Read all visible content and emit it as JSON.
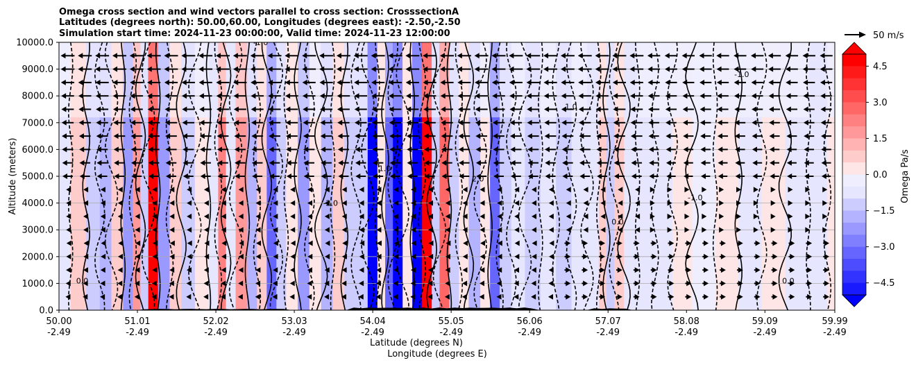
{
  "chart_data": {
    "type": "heatmap",
    "title_lines": [
      "Omega cross section and wind vectors parallel to cross section: CrosssectionA",
      "Latitudes (degrees north): 50.00,60.00, Longitudes (degrees east): -2.50,-2.50",
      "Simulation start time: 2024-11-23 00:00:00, Valid time: 2024-11-23 12:00:00"
    ],
    "xlabel_line1": "Latitude (degrees N)",
    "xlabel_line2": "Longitude (degrees E)",
    "ylabel": "Altitude (meters)",
    "colorbar_label": "Omega Pa/s",
    "vector_key_label": "50 m/s",
    "x_ticks": [
      {
        "lat": "50.00",
        "lon": "-2.49"
      },
      {
        "lat": "51.01",
        "lon": "-2.49"
      },
      {
        "lat": "52.02",
        "lon": "-2.49"
      },
      {
        "lat": "53.03",
        "lon": "-2.49"
      },
      {
        "lat": "54.04",
        "lon": "-2.49"
      },
      {
        "lat": "55.05",
        "lon": "-2.49"
      },
      {
        "lat": "56.06",
        "lon": "-2.49"
      },
      {
        "lat": "57.07",
        "lon": "-2.49"
      },
      {
        "lat": "58.08",
        "lon": "-2.49"
      },
      {
        "lat": "59.09",
        "lon": "-2.49"
      },
      {
        "lat": "59.99",
        "lon": "-2.49"
      }
    ],
    "y_ticks": [
      "0.0",
      "1000.0",
      "2000.0",
      "3000.0",
      "4000.0",
      "5000.0",
      "6000.0",
      "7000.0",
      "8000.0",
      "9000.0",
      "10000.0"
    ],
    "xlim": [
      50.0,
      59.99
    ],
    "ylim": [
      0,
      10000
    ],
    "colorbar_ticks": [
      "4.5",
      "3.0",
      "1.5",
      "0.0",
      "−1.5",
      "−3.0",
      "−4.5"
    ],
    "colorbar_range": [
      -5.0,
      5.0
    ],
    "colormap": {
      "negative": "#0000ff",
      "zero": "#ffffff",
      "positive": "#ff0000"
    },
    "grid": true,
    "omega_bands": [
      {
        "lat": 50.05,
        "value": -0.5
      },
      {
        "lat": 50.25,
        "value": 0.8
      },
      {
        "lat": 50.45,
        "value": -1.0
      },
      {
        "lat": 50.6,
        "value": -1.4
      },
      {
        "lat": 50.75,
        "value": 1.2
      },
      {
        "lat": 50.9,
        "value": -1.8
      },
      {
        "lat": 51.0,
        "value": 2.2
      },
      {
        "lat": 51.1,
        "value": -0.8
      },
      {
        "lat": 51.2,
        "value": 5.0
      },
      {
        "lat": 51.35,
        "value": -2.0
      },
      {
        "lat": 51.5,
        "value": 0.9
      },
      {
        "lat": 51.65,
        "value": -1.0
      },
      {
        "lat": 51.85,
        "value": 0.4
      },
      {
        "lat": 52.0,
        "value": -0.6
      },
      {
        "lat": 52.1,
        "value": 2.5
      },
      {
        "lat": 52.2,
        "value": -0.6
      },
      {
        "lat": 52.35,
        "value": 2.0
      },
      {
        "lat": 52.5,
        "value": -1.6
      },
      {
        "lat": 52.6,
        "value": 0.8
      },
      {
        "lat": 52.75,
        "value": -3.2
      },
      {
        "lat": 52.85,
        "value": -1.2
      },
      {
        "lat": 53.0,
        "value": 0.7
      },
      {
        "lat": 53.15,
        "value": -2.2
      },
      {
        "lat": 53.3,
        "value": 0.5
      },
      {
        "lat": 53.45,
        "value": -1.4
      },
      {
        "lat": 53.6,
        "value": 1.2
      },
      {
        "lat": 53.75,
        "value": -1.2
      },
      {
        "lat": 53.9,
        "value": -0.8
      },
      {
        "lat": 54.05,
        "value": -5.0
      },
      {
        "lat": 54.15,
        "value": 0.6
      },
      {
        "lat": 54.25,
        "value": -3.0
      },
      {
        "lat": 54.35,
        "value": -5.0
      },
      {
        "lat": 54.5,
        "value": 0.7
      },
      {
        "lat": 54.6,
        "value": -5.0
      },
      {
        "lat": 54.75,
        "value": 5.0
      },
      {
        "lat": 54.85,
        "value": -0.8
      },
      {
        "lat": 54.95,
        "value": 3.2
      },
      {
        "lat": 55.1,
        "value": -1.2
      },
      {
        "lat": 55.2,
        "value": 0.6
      },
      {
        "lat": 55.35,
        "value": -1.6
      },
      {
        "lat": 55.5,
        "value": 0.4
      },
      {
        "lat": 55.6,
        "value": -3.0
      },
      {
        "lat": 55.75,
        "value": -0.8
      },
      {
        "lat": 55.9,
        "value": -0.5
      },
      {
        "lat": 56.1,
        "value": -1.0
      },
      {
        "lat": 56.3,
        "value": -0.5
      },
      {
        "lat": 56.5,
        "value": -0.9
      },
      {
        "lat": 56.7,
        "value": -0.4
      },
      {
        "lat": 56.9,
        "value": -0.7
      },
      {
        "lat": 57.0,
        "value": 0.8
      },
      {
        "lat": 57.1,
        "value": -1.2
      },
      {
        "lat": 57.2,
        "value": 1.2
      },
      {
        "lat": 57.35,
        "value": -0.6
      },
      {
        "lat": 57.55,
        "value": -0.4
      },
      {
        "lat": 57.8,
        "value": -0.3
      },
      {
        "lat": 58.0,
        "value": 0.3
      },
      {
        "lat": 58.3,
        "value": -0.2
      },
      {
        "lat": 58.6,
        "value": 0.4
      },
      {
        "lat": 58.9,
        "value": -0.3
      },
      {
        "lat": 59.2,
        "value": 0.4
      },
      {
        "lat": 59.5,
        "value": -0.3
      },
      {
        "lat": 59.8,
        "value": -0.6
      },
      {
        "lat": 59.99,
        "value": 0.3
      }
    ],
    "wind_vector_rows_m": [
      500,
      1000,
      1500,
      2000,
      2500,
      3000,
      3500,
      4000,
      4500,
      5000,
      5500,
      6000,
      6500,
      7000,
      7500,
      8000,
      8500,
      9000,
      9500
    ],
    "contour_labels": [
      "0.0",
      "-1.0",
      "1.0",
      "-2.0",
      "2.0",
      "-1.0",
      "0.0",
      "-1.0",
      "0.0",
      "1.0"
    ]
  }
}
